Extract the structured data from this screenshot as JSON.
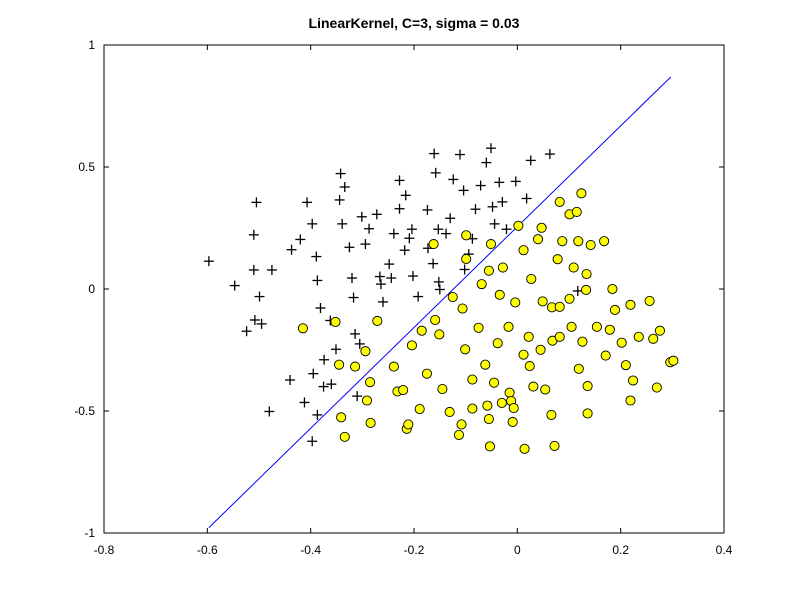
{
  "chart_data": {
    "type": "scatter",
    "title": "LinearKernel, C=3, sigma = 0.03",
    "xlabel": "",
    "ylabel": "",
    "xlim": [
      -0.8,
      0.4
    ],
    "ylim": [
      -1,
      1
    ],
    "xticks": [
      -0.8,
      -0.6,
      -0.4,
      -0.2,
      0,
      0.2,
      0.4
    ],
    "xtick_labels": [
      "-0.8",
      "-0.6",
      "-0.4",
      "-0.2",
      "0",
      "0.2",
      "0.4"
    ],
    "yticks": [
      -1,
      -0.5,
      0,
      0.5,
      1
    ],
    "ytick_labels": [
      "-1",
      "-0.5",
      "0",
      "0.5",
      "1"
    ],
    "grid": false,
    "colors": {
      "positive": "#000000",
      "negative_fill": "#ffff00",
      "negative_edge": "#000000",
      "boundary": "#0000ff"
    },
    "series": [
      {
        "marker": "plus",
        "points": [
          [
            -0.597,
            0.114
          ],
          [
            -0.547,
            0.014
          ],
          [
            -0.524,
            -0.173
          ],
          [
            -0.505,
            0.355
          ],
          [
            -0.51,
            0.222
          ],
          [
            -0.51,
            0.078
          ],
          [
            -0.499,
            -0.031
          ],
          [
            -0.508,
            -0.127
          ],
          [
            -0.495,
            -0.143
          ],
          [
            -0.475,
            0.078
          ],
          [
            -0.48,
            -0.502
          ],
          [
            -0.437,
            0.161
          ],
          [
            -0.42,
            0.203
          ],
          [
            -0.407,
            0.355
          ],
          [
            -0.397,
            0.267
          ],
          [
            -0.389,
            0.133
          ],
          [
            -0.387,
            0.035
          ],
          [
            -0.381,
            -0.078
          ],
          [
            -0.362,
            -0.129
          ],
          [
            -0.344,
            0.365
          ],
          [
            -0.342,
            0.473
          ],
          [
            -0.334,
            0.418
          ],
          [
            -0.339,
            0.267
          ],
          [
            -0.325,
            0.171
          ],
          [
            -0.32,
            0.045
          ],
          [
            -0.317,
            -0.035
          ],
          [
            -0.314,
            -0.184
          ],
          [
            -0.305,
            -0.225
          ],
          [
            -0.301,
            0.296
          ],
          [
            -0.294,
            0.184
          ],
          [
            -0.287,
            0.247
          ],
          [
            -0.44,
            -0.373
          ],
          [
            -0.412,
            -0.465
          ],
          [
            -0.395,
            -0.347
          ],
          [
            -0.387,
            -0.516
          ],
          [
            -0.397,
            -0.624
          ],
          [
            -0.374,
            -0.29
          ],
          [
            -0.375,
            -0.4
          ],
          [
            -0.36,
            -0.39
          ],
          [
            -0.351,
            -0.247
          ],
          [
            -0.31,
            -0.439
          ],
          [
            -0.272,
            0.306
          ],
          [
            -0.266,
            0.051
          ],
          [
            -0.264,
            0.02
          ],
          [
            -0.26,
            -0.053
          ],
          [
            -0.248,
            0.102
          ],
          [
            -0.244,
            0.045
          ],
          [
            -0.239,
            0.227
          ],
          [
            -0.228,
            0.445
          ],
          [
            -0.228,
            0.329
          ],
          [
            -0.218,
            0.159
          ],
          [
            -0.216,
            0.384
          ],
          [
            -0.209,
            0.208
          ],
          [
            -0.204,
            0.245
          ],
          [
            -0.202,
            0.053
          ],
          [
            -0.192,
            -0.031
          ],
          [
            -0.174,
            0.324
          ],
          [
            -0.173,
            0.167
          ],
          [
            -0.163,
            0.104
          ],
          [
            -0.161,
            0.555
          ],
          [
            -0.158,
            0.476
          ],
          [
            -0.153,
            0.245
          ],
          [
            -0.152,
            0.029
          ],
          [
            -0.15,
            -0.002
          ],
          [
            -0.138,
            0.227
          ],
          [
            -0.13,
            0.29
          ],
          [
            -0.124,
            0.449
          ],
          [
            -0.111,
            0.551
          ],
          [
            -0.104,
            0.404
          ],
          [
            -0.102,
            0.08
          ],
          [
            -0.094,
            0.143
          ],
          [
            -0.087,
            0.206
          ],
          [
            -0.081,
            0.327
          ],
          [
            -0.071,
            0.424
          ],
          [
            -0.06,
            0.518
          ],
          [
            -0.051,
            0.577
          ],
          [
            -0.048,
            0.337
          ],
          [
            -0.044,
            0.267
          ],
          [
            -0.035,
            0.437
          ],
          [
            -0.029,
            0.357
          ],
          [
            -0.021,
            0.245
          ],
          [
            -0.003,
            0.441
          ],
          [
            0.018,
            0.371
          ],
          [
            0.026,
            0.527
          ],
          [
            0.063,
            0.553
          ],
          [
            0.117,
            -0.008
          ]
        ]
      },
      {
        "marker": "circle",
        "points": [
          [
            -0.415,
            -0.161
          ],
          [
            -0.352,
            -0.135
          ],
          [
            -0.345,
            -0.31
          ],
          [
            -0.341,
            -0.526
          ],
          [
            -0.334,
            -0.606
          ],
          [
            -0.314,
            -0.318
          ],
          [
            -0.294,
            -0.255
          ],
          [
            -0.291,
            -0.457
          ],
          [
            -0.285,
            -0.382
          ],
          [
            -0.284,
            -0.549
          ],
          [
            -0.271,
            -0.131
          ],
          [
            -0.239,
            -0.318
          ],
          [
            -0.232,
            -0.42
          ],
          [
            -0.221,
            -0.414
          ],
          [
            -0.214,
            -0.573
          ],
          [
            -0.211,
            -0.555
          ],
          [
            -0.204,
            -0.231
          ],
          [
            -0.189,
            -0.492
          ],
          [
            -0.185,
            -0.171
          ],
          [
            -0.175,
            -0.347
          ],
          [
            -0.162,
            0.184
          ],
          [
            -0.159,
            -0.127
          ],
          [
            -0.151,
            -0.186
          ],
          [
            -0.145,
            -0.41
          ],
          [
            -0.131,
            -0.504
          ],
          [
            -0.125,
            -0.033
          ],
          [
            -0.113,
            -0.598
          ],
          [
            -0.106,
            -0.08
          ],
          [
            -0.108,
            -0.555
          ],
          [
            -0.101,
            -0.247
          ],
          [
            -0.099,
            0.22
          ],
          [
            -0.099,
            0.123
          ],
          [
            -0.087,
            -0.371
          ],
          [
            -0.087,
            -0.49
          ],
          [
            -0.075,
            -0.159
          ],
          [
            -0.069,
            0.02
          ],
          [
            -0.062,
            -0.31
          ],
          [
            -0.058,
            -0.478
          ],
          [
            -0.055,
            -0.533
          ],
          [
            -0.053,
            -0.645
          ],
          [
            -0.055,
            0.075
          ],
          [
            -0.051,
            0.184
          ],
          [
            -0.045,
            -0.384
          ],
          [
            -0.038,
            -0.222
          ],
          [
            -0.034,
            -0.024
          ],
          [
            -0.03,
            -0.467
          ],
          [
            -0.028,
            0.088
          ],
          [
            -0.017,
            -0.155
          ],
          [
            -0.015,
            -0.425
          ],
          [
            -0.012,
            -0.459
          ],
          [
            -0.009,
            -0.545
          ],
          [
            -0.007,
            -0.488
          ],
          [
            -0.004,
            -0.055
          ],
          [
            0.002,
            0.259
          ],
          [
            0.012,
            0.159
          ],
          [
            0.012,
            -0.269
          ],
          [
            0.014,
            -0.655
          ],
          [
            0.022,
            -0.196
          ],
          [
            0.024,
            -0.316
          ],
          [
            0.027,
            0.041
          ],
          [
            0.031,
            -0.4
          ],
          [
            0.04,
            0.204
          ],
          [
            0.045,
            -0.249
          ],
          [
            0.047,
            0.251
          ],
          [
            0.049,
            -0.051
          ],
          [
            0.054,
            -0.412
          ],
          [
            0.066,
            -0.516
          ],
          [
            0.067,
            -0.075
          ],
          [
            0.068,
            -0.212
          ],
          [
            0.072,
            -0.643
          ],
          [
            0.082,
            0.357
          ],
          [
            0.078,
            0.122
          ],
          [
            0.082,
            -0.073
          ],
          [
            0.082,
            -0.196
          ],
          [
            0.087,
            0.196
          ],
          [
            0.101,
            -0.04
          ],
          [
            0.101,
            0.306
          ],
          [
            0.105,
            -0.155
          ],
          [
            0.109,
            0.088
          ],
          [
            0.115,
            0.316
          ],
          [
            0.118,
            0.196
          ],
          [
            0.119,
            -0.327
          ],
          [
            0.124,
            0.392
          ],
          [
            0.126,
            -0.216
          ],
          [
            0.133,
            -0.004
          ],
          [
            0.134,
            0.061
          ],
          [
            0.136,
            -0.398
          ],
          [
            0.136,
            -0.51
          ],
          [
            0.142,
            0.18
          ],
          [
            0.154,
            -0.155
          ],
          [
            0.168,
            0.196
          ],
          [
            0.171,
            -0.273
          ],
          [
            0.179,
            -0.167
          ],
          [
            0.184,
            0.0
          ],
          [
            0.189,
            -0.086
          ],
          [
            0.202,
            -0.22
          ],
          [
            0.21,
            -0.312
          ],
          [
            0.219,
            -0.065
          ],
          [
            0.219,
            -0.457
          ],
          [
            0.224,
            -0.375
          ],
          [
            0.235,
            -0.196
          ],
          [
            0.256,
            -0.049
          ],
          [
            0.263,
            -0.204
          ],
          [
            0.27,
            -0.404
          ],
          [
            0.276,
            -0.171
          ],
          [
            0.296,
            -0.3
          ],
          [
            0.302,
            -0.294
          ]
        ]
      }
    ],
    "boundary_line": {
      "x": [
        -0.597,
        0.297
      ],
      "y": [
        -0.978,
        0.869
      ]
    }
  }
}
